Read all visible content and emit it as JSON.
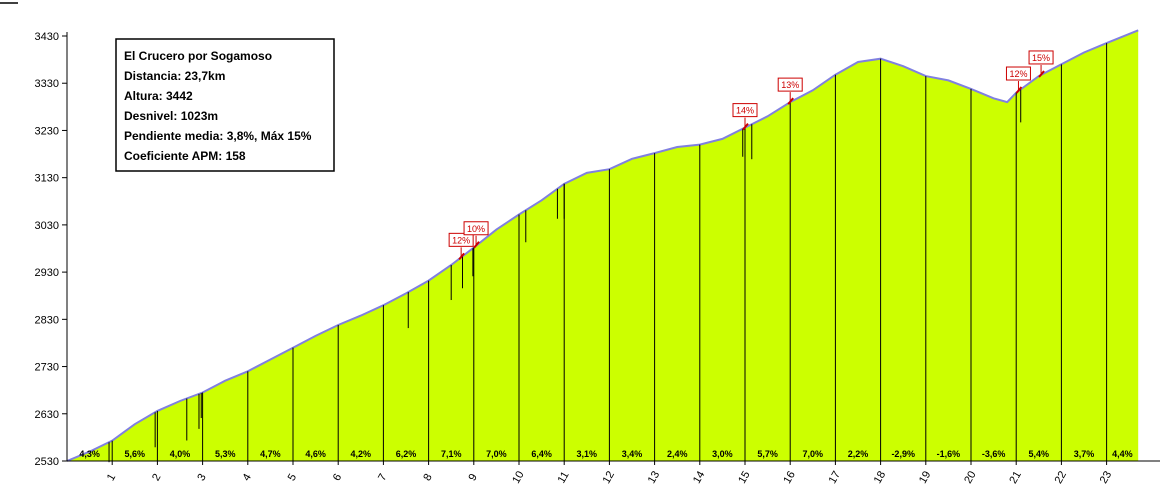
{
  "chart_data": {
    "type": "area",
    "info": [
      "El Crucero por Sogamoso",
      "Distancia: 23,7km",
      "Altura: 3442",
      "Desnivel: 1023m",
      "Pendiente media: 3,8%, Máx 15%",
      "Coeficiente APM: 158"
    ],
    "ylim": [
      2530,
      3450
    ],
    "yticks": [
      2530,
      2630,
      2730,
      2830,
      2930,
      3030,
      3130,
      3230,
      3330,
      3430
    ],
    "xlim": [
      0,
      23.7
    ],
    "xticks": [
      "1",
      "2",
      "3",
      "4",
      "5",
      "6",
      "7",
      "8",
      "9",
      "10",
      "11",
      "12",
      "13",
      "14",
      "15",
      "16",
      "17",
      "18",
      "19",
      "20",
      "21",
      "22",
      "23"
    ],
    "profile": {
      "x": [
        0,
        0.5,
        1,
        1.5,
        2,
        2.5,
        3,
        3.5,
        4,
        4.5,
        5,
        5.5,
        6,
        6.5,
        7,
        7.5,
        8,
        8.5,
        9,
        9.5,
        10,
        10.5,
        11,
        11.5,
        12,
        12.5,
        13,
        13.5,
        14,
        14.5,
        15,
        15.5,
        16,
        16.5,
        17,
        17.5,
        18,
        18.5,
        19,
        19.5,
        20,
        20.5,
        20.8,
        21,
        21.5,
        22,
        22.5,
        23,
        23.7
      ],
      "y": [
        2530,
        2550,
        2573,
        2608,
        2636,
        2657,
        2675,
        2700,
        2720,
        2745,
        2770,
        2795,
        2818,
        2838,
        2860,
        2885,
        2912,
        2945,
        2982,
        3020,
        3052,
        3082,
        3117,
        3140,
        3148,
        3170,
        3182,
        3195,
        3200,
        3212,
        3236,
        3260,
        3290,
        3315,
        3348,
        3375,
        3382,
        3366,
        3345,
        3336,
        3318,
        3298,
        3290,
        3310,
        3345,
        3370,
        3395,
        3415,
        3442
      ]
    },
    "segments": [
      {
        "km": 1,
        "grade": "4,3%"
      },
      {
        "km": 2,
        "grade": "5,6%"
      },
      {
        "km": 3,
        "grade": "4,0%"
      },
      {
        "km": 4,
        "grade": "5,3%"
      },
      {
        "km": 5,
        "grade": "4,7%"
      },
      {
        "km": 6,
        "grade": "4,6%"
      },
      {
        "km": 7,
        "grade": "4,2%"
      },
      {
        "km": 8,
        "grade": "6,2%"
      },
      {
        "km": 9,
        "grade": "7,1%"
      },
      {
        "km": 10,
        "grade": "7,0%"
      },
      {
        "km": 11,
        "grade": "6,4%"
      },
      {
        "km": 12,
        "grade": "3,1%"
      },
      {
        "km": 13,
        "grade": "3,4%"
      },
      {
        "km": 14,
        "grade": "2,4%"
      },
      {
        "km": 15,
        "grade": "3,0%"
      },
      {
        "km": 16,
        "grade": "5,7%"
      },
      {
        "km": 17,
        "grade": "7,0%"
      },
      {
        "km": 18,
        "grade": "2,2%"
      },
      {
        "km": 19,
        "grade": "-2,9%"
      },
      {
        "km": 20,
        "grade": "-1,6%"
      },
      {
        "km": 21,
        "grade": "-3,6%"
      },
      {
        "km": 22,
        "grade": "5,4%"
      },
      {
        "km": 23,
        "grade": "3,7%"
      },
      {
        "km": 23.7,
        "grade": "4,4%"
      }
    ],
    "short_ticks": [
      {
        "x": 0.93,
        "depth": 20
      },
      {
        "x": 1.95,
        "depth": 35
      },
      {
        "x": 2.65,
        "depth": 42
      },
      {
        "x": 2.92,
        "depth": 35
      },
      {
        "x": 2.97,
        "depth": 25
      },
      {
        "x": 7.55,
        "depth": 36
      },
      {
        "x": 8.5,
        "depth": 35
      },
      {
        "x": 8.75,
        "depth": 32
      },
      {
        "x": 8.98,
        "depth": 28
      },
      {
        "x": 10.15,
        "depth": 32
      },
      {
        "x": 10.85,
        "depth": 30
      },
      {
        "x": 11.0,
        "depth": 35
      },
      {
        "x": 14.95,
        "depth": 28
      },
      {
        "x": 15.15,
        "depth": 35
      },
      {
        "x": 21.1,
        "depth": 33
      }
    ],
    "peaks": [
      {
        "x": 8.72,
        "label": "12%"
      },
      {
        "x": 9.05,
        "label": "10%"
      },
      {
        "x": 15.0,
        "label": "14%"
      },
      {
        "x": 16.0,
        "label": "13%"
      },
      {
        "x": 21.05,
        "label": "12%"
      },
      {
        "x": 21.55,
        "label": "15%"
      }
    ],
    "colors": {
      "fill": "#ccff00",
      "profile_line": "#8080e0",
      "peak": "#cc0000",
      "axis": "#000000"
    },
    "grid": false
  }
}
